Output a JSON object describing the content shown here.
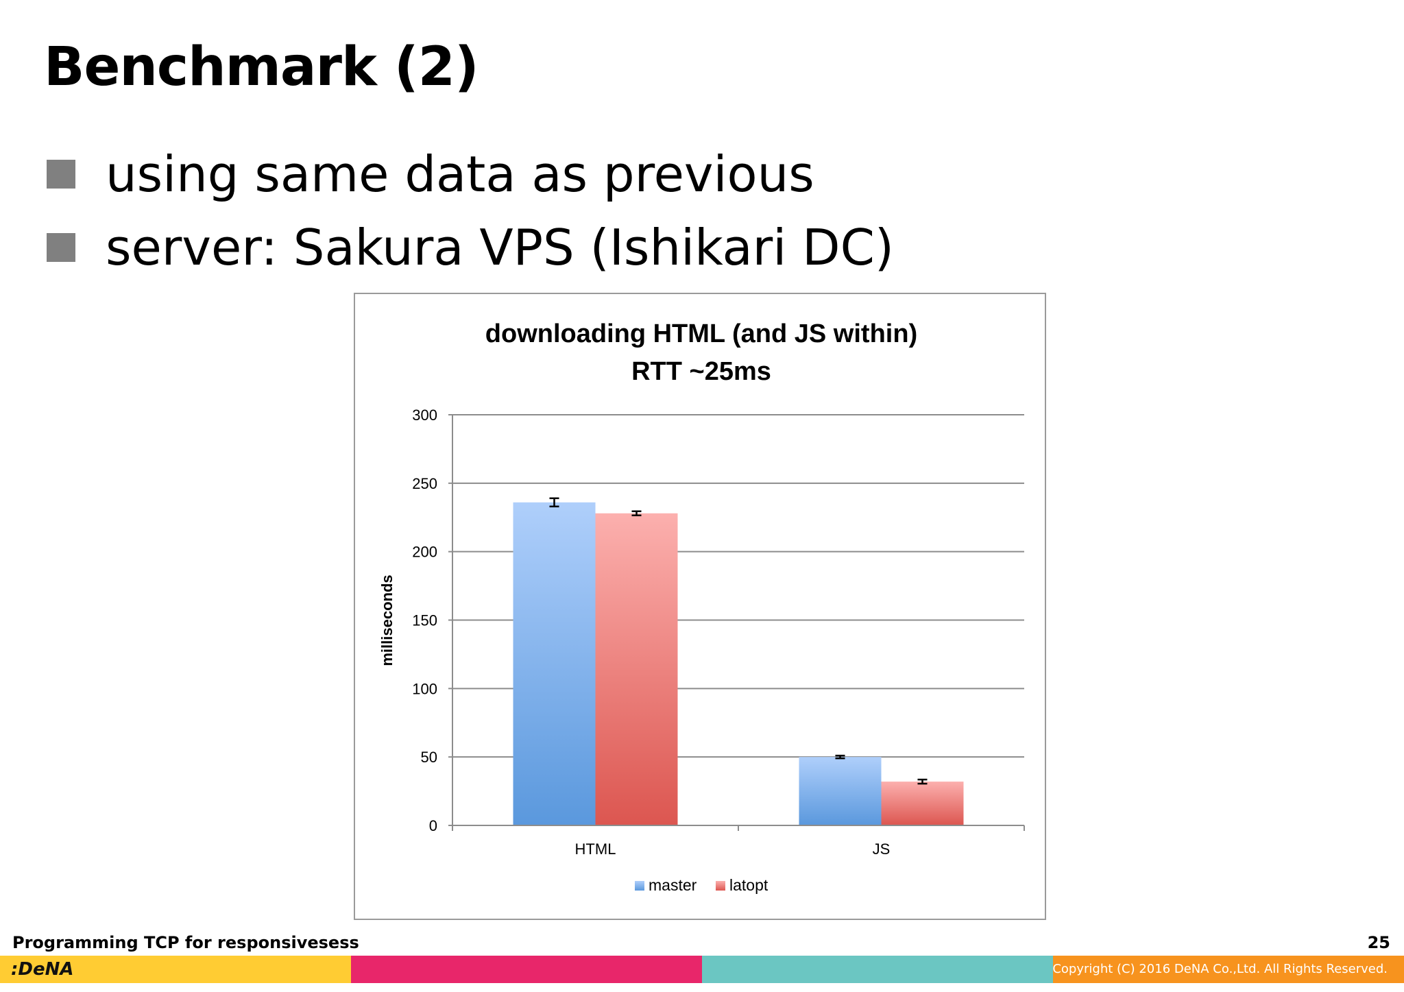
{
  "slide": {
    "title": "Benchmark (2)",
    "bullets": [
      "using same data as previous",
      "server: Sakura VPS (Ishikari DC)"
    ],
    "footer_title": "Programming TCP for responsivesess",
    "page_number": "25",
    "logo_text": ":DeNA",
    "copyright": "Copyright (C) 2016 DeNA Co.,Ltd. All Rights Reserved.",
    "strip_colors": [
      "#FFCC33",
      "#E8266A",
      "#6BC6C2",
      "#F7931E"
    ]
  },
  "chart_data": {
    "type": "bar",
    "title": "downloading HTML (and JS within)",
    "subtitle": "RTT ~25ms",
    "xlabel": "",
    "ylabel": "milliseconds",
    "categories": [
      "HTML",
      "JS"
    ],
    "ylim": [
      0,
      300
    ],
    "yticks": [
      0,
      50,
      100,
      150,
      200,
      250,
      300
    ],
    "grid": true,
    "legend": "bottom",
    "series": [
      {
        "name": "master",
        "values": [
          236,
          50
        ],
        "errors": [
          3,
          1
        ],
        "color_top": "#AFCFFB",
        "color_bottom": "#5A98DD"
      },
      {
        "name": "latopt",
        "values": [
          228,
          32
        ],
        "errors": [
          1.5,
          1.5
        ],
        "color_top": "#FCB0AE",
        "color_bottom": "#DC5650"
      }
    ]
  }
}
